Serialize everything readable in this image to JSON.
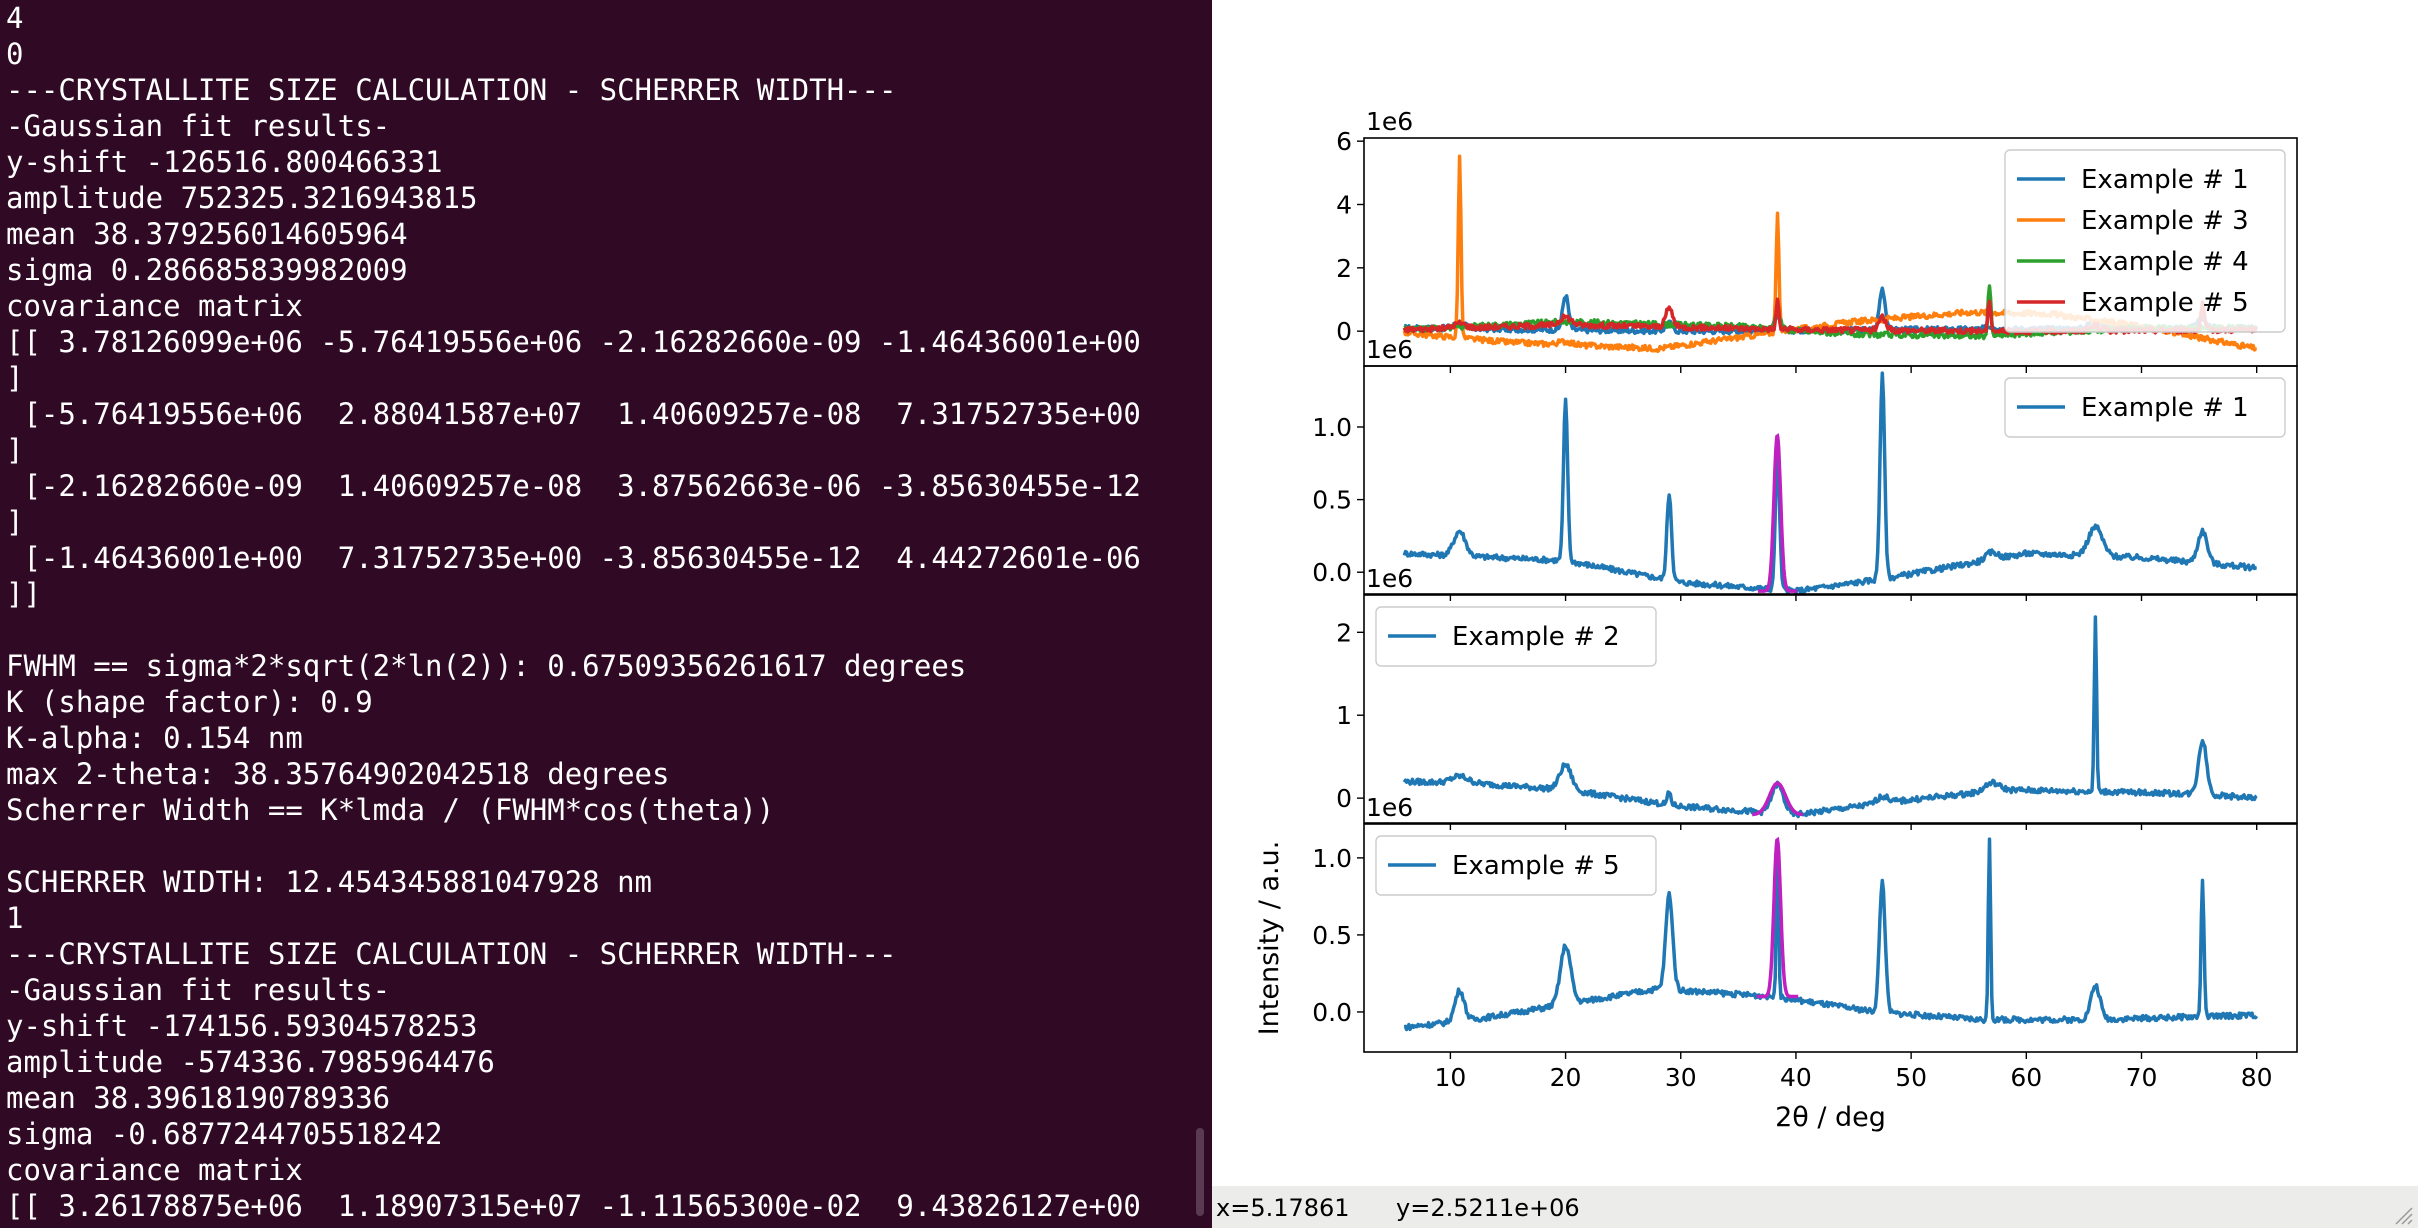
{
  "terminal": {
    "lines": [
      "4",
      "0",
      "---CRYSTALLITE SIZE CALCULATION - SCHERRER WIDTH---",
      "-Gaussian fit results-",
      "y-shift -126516.800466331",
      "amplitude 752325.3216943815",
      "mean 38.379256014605964",
      "sigma 0.286685839982009",
      "covariance matrix",
      "[[ 3.78126099e+06 -5.76419556e+06 -2.16282660e-09 -1.46436001e+00",
      "]",
      " [-5.76419556e+06  2.88041587e+07  1.40609257e-08  7.31752735e+00",
      "]",
      " [-2.16282660e-09  1.40609257e-08  3.87562663e-06 -3.85630455e-12",
      "]",
      " [-1.46436001e+00  7.31752735e+00 -3.85630455e-12  4.44272601e-06",
      "]]",
      "",
      "FWHM == sigma*2*sqrt(2*ln(2)): 0.67509356261617 degrees",
      "K (shape factor): 0.9",
      "K-alpha: 0.154 nm",
      "max 2-theta: 38.35764902042518 degrees",
      "Scherrer Width == K*lmda / (FWHM*cos(theta))",
      "",
      "SCHERRER WIDTH: 12.454345881047928 nm",
      "1",
      "---CRYSTALLITE SIZE CALCULATION - SCHERRER WIDTH---",
      "-Gaussian fit results-",
      "y-shift -174156.59304578253",
      "amplitude -574336.7985964476",
      "mean 38.39618190789336",
      "sigma -0.6877244705518242",
      "covariance matrix",
      "[[ 3.26178875e+06  1.18907315e+07 -1.11565300e-02  9.43826127e+00"
    ]
  },
  "status": {
    "x_readout": "x=5.17861",
    "y_readout": "y=2.5211e+06"
  },
  "chart_data": [
    {
      "type": "line",
      "offset_label": "1e6",
      "xlim": [
        2.5,
        83.5
      ],
      "ylim": [
        -1.1,
        6.1
      ],
      "yticks": [
        0,
        2,
        4,
        6
      ],
      "legend_position": "top-right",
      "series": [
        {
          "name": "Example # 1",
          "color": "#1f77b4",
          "base": [
            [
              6,
              0.1
            ],
            [
              30,
              0.0
            ],
            [
              50,
              0.05
            ],
            [
              80,
              0.1
            ]
          ],
          "peaks": [
            [
              10.8,
              0.15,
              0.6
            ],
            [
              20,
              1.1,
              0.25
            ],
            [
              29,
              0.25,
              0.3
            ],
            [
              38.4,
              0.5,
              0.25
            ],
            [
              47.5,
              1.3,
              0.25
            ],
            [
              57,
              0.1,
              0.4
            ],
            [
              66,
              0.3,
              0.5
            ],
            [
              75.3,
              0.3,
              0.4
            ]
          ]
        },
        {
          "name": "Example # 3",
          "color": "#ff7f0e",
          "base": [
            [
              6,
              -0.05
            ],
            [
              15,
              -0.35
            ],
            [
              28,
              -0.55
            ],
            [
              38,
              -0.05
            ],
            [
              45,
              0.3
            ],
            [
              55,
              0.6
            ],
            [
              62,
              0.55
            ],
            [
              70,
              0.15
            ],
            [
              80,
              -0.55
            ]
          ],
          "peaks": [
            [
              10.8,
              5.7,
              0.12
            ],
            [
              20,
              0.1,
              0.6
            ],
            [
              38.4,
              3.8,
              0.12
            ]
          ]
        },
        {
          "name": "Example # 4",
          "color": "#2ca02c",
          "base": [
            [
              6,
              0.05
            ],
            [
              20,
              0.3
            ],
            [
              35,
              0.15
            ],
            [
              45,
              -0.1
            ],
            [
              56,
              -0.15
            ],
            [
              70,
              0.1
            ],
            [
              80,
              0.1
            ]
          ],
          "peaks": [
            [
              38.4,
              0.5,
              0.25
            ],
            [
              56.8,
              1.6,
              0.12
            ]
          ]
        },
        {
          "name": "Example # 5",
          "color": "#d62728",
          "base": [
            [
              6,
              0.05
            ],
            [
              20,
              0.2
            ],
            [
              40,
              0.05
            ],
            [
              60,
              0.0
            ],
            [
              80,
              0.05
            ]
          ],
          "peaks": [
            [
              10.8,
              0.15,
              0.5
            ],
            [
              20,
              0.25,
              0.5
            ],
            [
              29,
              0.6,
              0.3
            ],
            [
              38.4,
              0.9,
              0.12
            ],
            [
              47.5,
              0.4,
              0.3
            ],
            [
              56.8,
              1.0,
              0.12
            ],
            [
              66,
              0.15,
              0.5
            ],
            [
              75.3,
              0.8,
              0.15
            ]
          ]
        }
      ],
      "fit": null
    },
    {
      "type": "line",
      "offset_label": "1e6",
      "xlim": [
        2.5,
        83.5
      ],
      "ylim": [
        -0.15,
        1.42
      ],
      "yticks": [
        0.0,
        0.5,
        1.0
      ],
      "legend_position": "top-right",
      "series": [
        {
          "name": "Example # 1",
          "color": "#1f77b4",
          "base": [
            [
              6,
              0.13
            ],
            [
              20,
              0.08
            ],
            [
              30,
              -0.07
            ],
            [
              40,
              -0.13
            ],
            [
              48,
              -0.04
            ],
            [
              60,
              0.13
            ],
            [
              70,
              0.1
            ],
            [
              80,
              0.03
            ]
          ],
          "peaks": [
            [
              10.8,
              0.17,
              0.5
            ],
            [
              20,
              1.1,
              0.18
            ],
            [
              29,
              0.6,
              0.2
            ],
            [
              38.4,
              0.95,
              0.18
            ],
            [
              47.5,
              1.4,
              0.2
            ],
            [
              57,
              0.05,
              0.5
            ],
            [
              66,
              0.2,
              0.6
            ],
            [
              75.3,
              0.22,
              0.4
            ]
          ]
        }
      ],
      "fit": {
        "color": "#c020c0",
        "x_range": [
          36.7,
          40.1
        ],
        "center": 38.38,
        "sigma": 0.29,
        "amplitude": 1.07,
        "base": -0.13
      }
    },
    {
      "type": "line",
      "offset_label": "1e6",
      "xlim": [
        2.5,
        83.5
      ],
      "ylim": [
        -0.3,
        2.45
      ],
      "yticks": [
        0,
        1,
        2
      ],
      "legend_position": "top-left",
      "series": [
        {
          "name": "Example # 2",
          "color": "#1f77b4",
          "base": [
            [
              6,
              0.2
            ],
            [
              12,
              0.18
            ],
            [
              20,
              0.1
            ],
            [
              30,
              -0.1
            ],
            [
              40,
              -0.2
            ],
            [
              48,
              -0.05
            ],
            [
              58,
              0.1
            ],
            [
              66,
              0.08
            ],
            [
              75,
              0.05
            ],
            [
              80,
              0.0
            ]
          ],
          "peaks": [
            [
              10.8,
              0.08,
              0.7
            ],
            [
              20,
              0.3,
              0.5
            ],
            [
              29,
              0.15,
              0.15
            ],
            [
              38.4,
              0.35,
              0.5
            ],
            [
              47.5,
              0.08,
              0.5
            ],
            [
              57,
              0.1,
              0.6
            ],
            [
              66,
              2.1,
              0.1
            ],
            [
              75.3,
              0.65,
              0.35
            ]
          ]
        }
      ],
      "fit": {
        "color": "#c020c0",
        "x_range": [
          36.2,
          40.6
        ],
        "center": 38.4,
        "sigma": 0.69,
        "amplitude": 0.38,
        "base": -0.2
      }
    },
    {
      "type": "line",
      "offset_label": "1e6",
      "xlim": [
        2.5,
        83.5
      ],
      "ylim": [
        -0.26,
        1.22
      ],
      "yticks": [
        0.0,
        0.5,
        1.0
      ],
      "legend_position": "top-left",
      "xlabel": "2θ / deg",
      "ylabel": "Intensity / a.u.",
      "xticks": [
        10,
        20,
        30,
        40,
        50,
        60,
        70,
        80
      ],
      "series": [
        {
          "name": "Example # 5",
          "color": "#1f77b4",
          "base": [
            [
              6,
              -0.1
            ],
            [
              12,
              -0.05
            ],
            [
              20,
              0.05
            ],
            [
              28,
              0.15
            ],
            [
              38,
              0.1
            ],
            [
              47,
              0.0
            ],
            [
              56,
              -0.05
            ],
            [
              66,
              -0.05
            ],
            [
              80,
              -0.02
            ]
          ],
          "peaks": [
            [
              10.8,
              0.2,
              0.4
            ],
            [
              20,
              0.38,
              0.45
            ],
            [
              29,
              0.62,
              0.3
            ],
            [
              38.4,
              1.0,
              0.1
            ],
            [
              47.5,
              0.85,
              0.25
            ],
            [
              56.8,
              1.18,
              0.1
            ],
            [
              66,
              0.22,
              0.4
            ],
            [
              75.3,
              0.9,
              0.12
            ]
          ]
        }
      ],
      "fit": {
        "color": "#c020c0",
        "x_range": [
          36.6,
          40.2
        ],
        "center": 38.38,
        "sigma": 0.29,
        "amplitude": 1.02,
        "base": 0.1
      }
    }
  ]
}
